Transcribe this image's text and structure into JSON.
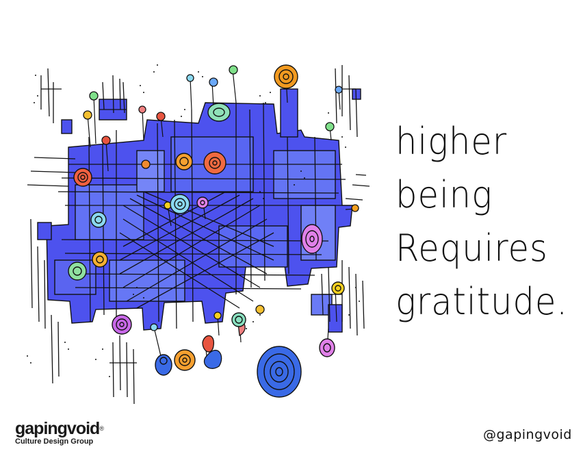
{
  "caption": {
    "lines": [
      "higher",
      "being",
      "Requires",
      "gratitude."
    ]
  },
  "brand": {
    "name": "gapingvoid",
    "mark": "®",
    "tagline": "Culture Design Group"
  },
  "handle": "@gapingvoid",
  "colors": {
    "primary_blue": "#4a4ff0",
    "light_blue": "#6a7af6",
    "ink": "#111111",
    "orange": "#f29a20",
    "red": "#e85540",
    "green": "#7fe08a",
    "cyan": "#8ad8f0",
    "magenta": "#e080e8",
    "yellow": "#f6d020"
  }
}
